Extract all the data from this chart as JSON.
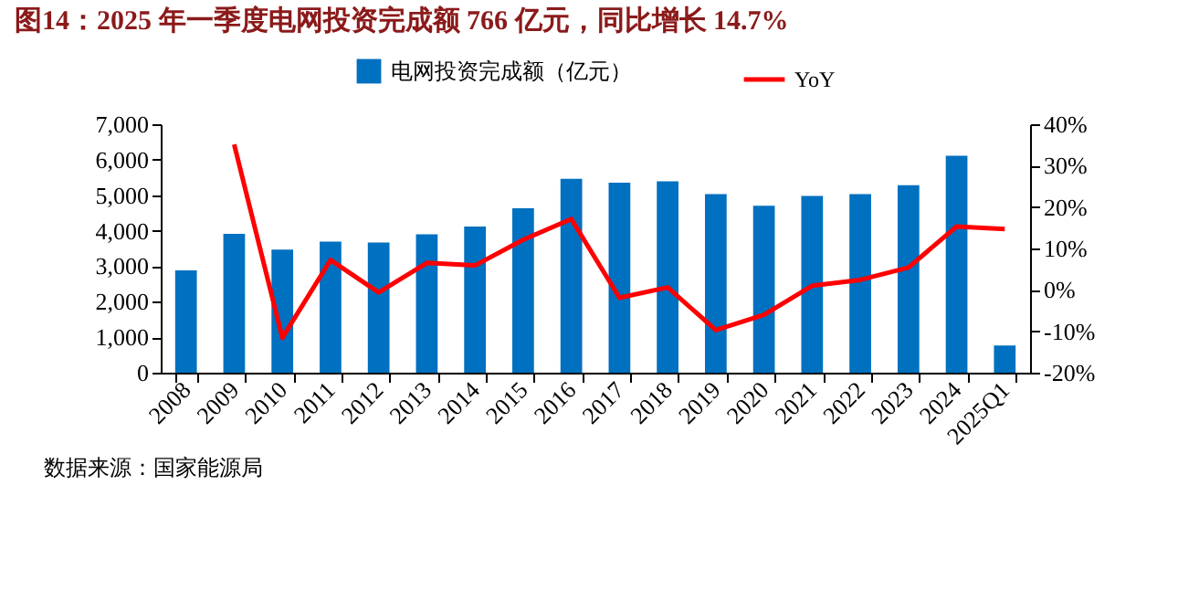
{
  "chart_data": {
    "type": "bar",
    "title": "图14：2025 年一季度电网投资完成额 766 亿元，同比增长 14.7%",
    "categories": [
      "2008",
      "2009",
      "2010",
      "2011",
      "2012",
      "2013",
      "2014",
      "2015",
      "2016",
      "2017",
      "2018",
      "2019",
      "2020",
      "2021",
      "2022",
      "2023",
      "2024",
      "2025Q1"
    ],
    "series": [
      {
        "name": "电网投资完成额（亿元）",
        "color": "#0070c0",
        "values": [
          2880,
          3910,
          3470,
          3690,
          3670,
          3900,
          4120,
          4630,
          5460,
          5350,
          5390,
          5030,
          4700,
          4980,
          5030,
          5280,
          6110,
          766
        ]
      },
      {
        "name": "YoY",
        "type": "line",
        "axis": "y2",
        "color": "#ff0000",
        "values": [
          null,
          35.1,
          -11.6,
          7.2,
          -0.6,
          6.5,
          5.9,
          12.1,
          17.1,
          -1.9,
          0.6,
          -9.7,
          -6.0,
          1.0,
          2.4,
          5.4,
          15.3,
          14.7
        ]
      }
    ],
    "ylim": [
      0,
      7000
    ],
    "yticks": [
      0,
      {
        "value": 1000,
        "label": "1,000"
      },
      {
        "value": 2000,
        "label": "2,000"
      },
      {
        "value": 3000,
        "label": "3,000"
      },
      {
        "value": 4000,
        "label": "4,000"
      },
      {
        "value": 5000,
        "label": "5,000"
      },
      {
        "value": 6000,
        "label": "6,000"
      },
      {
        "value": 7000,
        "label": "7,000"
      }
    ],
    "y2lim": [
      -20,
      40
    ],
    "y2ticks": [
      {
        "value": -20,
        "label": "-20%"
      },
      {
        "value": -10,
        "label": "-10%"
      },
      {
        "value": 0,
        "label": "0%"
      },
      {
        "value": 10,
        "label": "10%"
      },
      {
        "value": 20,
        "label": "20%"
      },
      {
        "value": 30,
        "label": "30%"
      },
      {
        "value": 40,
        "label": "40%"
      }
    ],
    "legend": "top",
    "grid": false,
    "annotations": [
      "数据来源：国家能源局"
    ]
  }
}
